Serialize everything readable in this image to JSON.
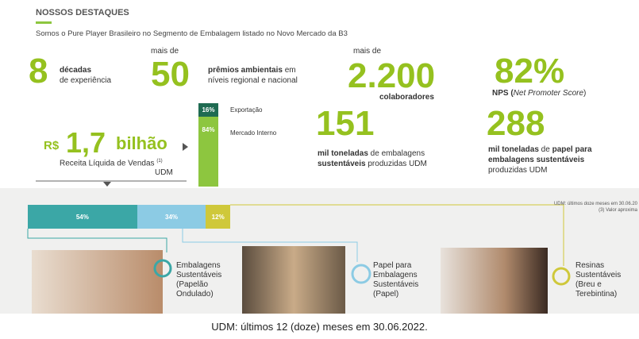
{
  "header": {
    "title": "NOSSOS DESTAQUES",
    "subtitle": "Somos o Pure Player Brasileiro no Segmento de Embalagem listado no Novo Mercado da B3"
  },
  "highlights": {
    "decades": {
      "value": "8",
      "line1": "décadas",
      "line2": "de experiência"
    },
    "awards": {
      "prefix": "mais de",
      "value": "50",
      "line1": "prêmios ambientais",
      "line1_end": " em",
      "line2": "níveis regional e nacional"
    },
    "employees": {
      "prefix": "mais de",
      "value": "2.200",
      "label": "colaboradores"
    },
    "nps": {
      "value": "82%",
      "label": "NPS (",
      "label_italic": "Net Promoter Score",
      "label_end": ")"
    },
    "revenue": {
      "currency": "R$",
      "value": "1,7",
      "unit": "bilhão",
      "label": "Receita Líquida de Vendas",
      "note": "(1)",
      "period": "UDM"
    },
    "market_split": {
      "values": [
        16,
        84
      ],
      "value_labels": [
        "16%",
        "84%"
      ],
      "names": [
        "Exportação",
        "Mercado Interno"
      ],
      "colors": [
        "#1f6b52",
        "#8dc63f"
      ]
    },
    "packaging": {
      "value": "151",
      "line1_bold": "mil toneladas",
      "line1": " de embalagens",
      "line2_bold": "sustentáveis",
      "line2": " produzidas UDM"
    },
    "paper": {
      "value": "288",
      "line1_bold": "mil toneladas",
      "line1": " de ",
      "line1_bold2": "papel para",
      "line2_bold": "embalagens sustentáveis",
      "line3": "produzidas UDM"
    }
  },
  "segments": {
    "values": [
      54,
      34,
      12
    ],
    "value_labels": [
      "54%",
      "34%",
      "12%"
    ],
    "colors": [
      "#3ba7a6",
      "#8ccbe4",
      "#cfc83a"
    ],
    "names": [
      [
        "Embalagens",
        "Sustentáveis",
        "(Papelão",
        "Ondulado)"
      ],
      [
        "Papel para",
        "Embalagens",
        "Sustentáveis",
        "(Papel)"
      ],
      [
        "Resinas",
        "Sustentáveis",
        "(Breu e",
        "Terebintina)"
      ]
    ]
  },
  "notes": [
    "UDM: últimos doze meses em 30.06.20",
    "(3) Valor aproxima"
  ],
  "caption": "UDM: últimos 12 (doze) meses em 30.06.2022."
}
